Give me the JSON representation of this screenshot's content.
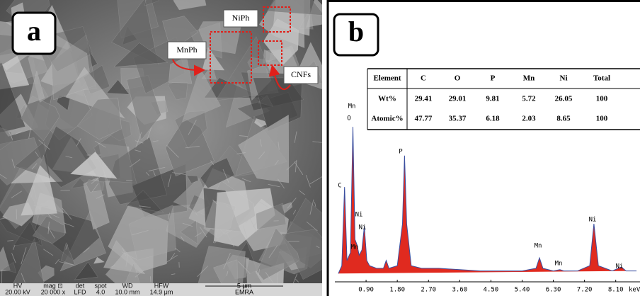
{
  "panel_a": {
    "label": "a",
    "annotations": [
      "NiPh",
      "MnPh",
      "CNFs"
    ],
    "info_bar": {
      "headers": [
        "HV",
        "mag ⊡",
        "det",
        "spot",
        "WD",
        "HFW"
      ],
      "values": [
        "20.00 kV",
        "20 000 x",
        "LFD",
        "4.0",
        "10.0 mm",
        "14.9 μm"
      ],
      "scale": "5 μm",
      "lab": "EMRA"
    }
  },
  "panel_b": {
    "label": "b",
    "table": {
      "header": [
        "Element",
        "C",
        "O",
        "P",
        "Mn",
        "Ni",
        "Total"
      ],
      "rows": [
        [
          "Wt%",
          "29.41",
          "29.01",
          "9.81",
          "5.72",
          "26.05",
          "100"
        ],
        [
          "Atomic%",
          "47.77",
          "35.37",
          "6.18",
          "2.03",
          "8.65",
          "100"
        ]
      ]
    }
  },
  "chart_data": {
    "type": "area",
    "x_label": "keV",
    "x": [
      0.1,
      0.2,
      0.28,
      0.35,
      0.45,
      0.52,
      0.58,
      0.64,
      0.7,
      0.78,
      0.85,
      0.92,
      1.0,
      1.2,
      1.4,
      1.48,
      1.56,
      1.8,
      1.95,
      2.01,
      2.07,
      2.2,
      2.5,
      3.0,
      3.6,
      4.2,
      4.8,
      5.4,
      5.8,
      5.9,
      6.0,
      6.3,
      6.49,
      6.6,
      7.0,
      7.35,
      7.47,
      7.6,
      8.0,
      8.26,
      8.4,
      8.7
    ],
    "series": [
      {
        "color": "#e02a1f",
        "line_color": "#3a4fa0",
        "values": [
          1,
          4,
          34,
          6,
          9,
          57,
          14,
          12,
          8,
          10,
          19,
          6,
          4,
          3,
          3,
          6,
          3,
          4,
          20,
          46,
          20,
          4,
          3,
          3,
          2.5,
          2,
          2,
          2,
          3,
          7,
          3,
          2,
          2.5,
          2,
          2,
          4,
          20,
          4,
          2,
          3.5,
          2,
          2
        ]
      }
    ],
    "xlim": [
      0,
      8.8
    ],
    "ylim": [
      0,
      100
    ],
    "xticks": [
      {
        "value": 0.9,
        "label": "0.90"
      },
      {
        "value": 1.8,
        "label": "1.80"
      },
      {
        "value": 2.7,
        "label": "2.70"
      },
      {
        "value": 3.6,
        "label": "3.60"
      },
      {
        "value": 4.5,
        "label": "4.50"
      },
      {
        "value": 5.4,
        "label": "5.40"
      },
      {
        "value": 6.3,
        "label": "6.30"
      },
      {
        "value": 7.2,
        "label": "7.20"
      },
      {
        "value": 8.1,
        "label": "8.10"
      }
    ],
    "peak_labels": [
      "C",
      "Mn",
      "O",
      "Ni",
      "Ni",
      "Mn",
      "P",
      "Mn",
      "Mn",
      "Ni",
      "Ni"
    ]
  }
}
